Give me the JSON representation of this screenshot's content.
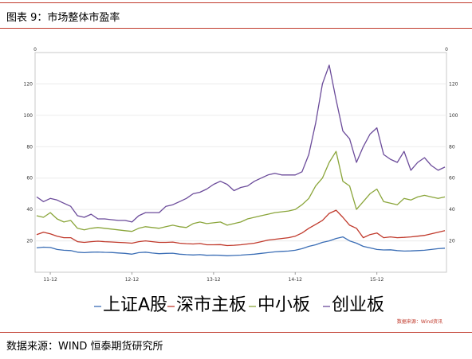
{
  "header": {
    "title": "图表 9：市场整体市盈率"
  },
  "footer": {
    "source": "数据来源：WIND 恒泰期货研究所"
  },
  "chart_data": {
    "type": "line",
    "x_ticks": [
      "11-12",
      "12-12",
      "13-12",
      "14-12",
      "15-12"
    ],
    "x_tick_positions": [
      2,
      14,
      26,
      38,
      50
    ],
    "ylim": [
      0,
      140
    ],
    "y_ticks": [
      20,
      40,
      60,
      80,
      100,
      120
    ],
    "y_top_label": "0",
    "watermark": "数据来源：Wind资讯",
    "colors": {
      "上证A股": "#3a6db5",
      "深市主板": "#c0392b",
      "中小板": "#8aa53a",
      "创业板": "#6b4b9a"
    },
    "series": [
      {
        "name": "上证A股",
        "values": [
          15.5,
          16,
          15.8,
          14.5,
          14,
          13.8,
          12.8,
          12.5,
          12.8,
          12.9,
          12.7,
          12.6,
          12.3,
          12,
          11.5,
          12.5,
          12.8,
          12.2,
          11.8,
          12,
          12.1,
          11.5,
          11.2,
          11,
          11.2,
          10.8,
          10.9,
          10.8,
          10.5,
          10.7,
          10.9,
          11.2,
          11.5,
          12,
          12.5,
          13,
          13.3,
          13.5,
          14,
          15,
          16.5,
          17.5,
          19,
          20,
          21.5,
          22.5,
          20,
          18.5,
          16.5,
          15.5,
          14.5,
          14.2,
          14.3,
          13.8,
          13.5,
          13.6,
          13.8,
          14,
          14.5,
          15,
          15.3
        ]
      },
      {
        "name": "深市主板",
        "values": [
          24,
          25.5,
          24.5,
          23,
          22,
          22,
          19.5,
          19,
          19.5,
          19.8,
          19.5,
          19.3,
          19,
          18.8,
          18.5,
          19.5,
          20,
          19.5,
          19,
          19,
          19.2,
          18.5,
          18.2,
          18,
          18.3,
          17.5,
          17.5,
          17.6,
          17,
          17.2,
          17.5,
          18,
          18.5,
          19.5,
          20.5,
          21,
          21.5,
          22,
          23,
          25,
          28,
          30.5,
          33,
          37.5,
          39.5,
          35,
          30,
          28,
          22,
          24,
          25,
          22,
          22.5,
          22,
          22.2,
          22.5,
          23,
          23.5,
          24.5,
          25.5,
          26.5
        ]
      },
      {
        "name": "中小板",
        "values": [
          36,
          35,
          38,
          34,
          32,
          33,
          28,
          27,
          28,
          28.5,
          28,
          27.5,
          27,
          26.5,
          26,
          28,
          29,
          28.5,
          28,
          29,
          30,
          29,
          28.5,
          31,
          32,
          31,
          31.5,
          32,
          30,
          31,
          32,
          34,
          35,
          36,
          37,
          38,
          38.5,
          39,
          40,
          43,
          47,
          55,
          60,
          70,
          77,
          58,
          55,
          40,
          45,
          50,
          53,
          45,
          44,
          43,
          47,
          46,
          48,
          49,
          48,
          47,
          48
        ]
      },
      {
        "name": "创业板",
        "values": [
          48,
          45,
          47,
          46,
          44,
          42,
          36,
          35,
          37,
          34,
          34,
          33.5,
          33,
          33,
          32,
          36,
          38,
          38,
          38,
          42,
          43,
          45,
          47,
          50,
          51,
          53,
          56,
          58,
          56,
          52,
          54,
          55,
          58,
          60,
          62,
          63,
          62,
          62,
          62,
          64,
          75,
          95,
          120,
          132,
          110,
          90,
          85,
          70,
          80,
          88,
          92,
          75,
          72,
          70,
          77,
          65,
          70,
          73,
          68,
          65,
          67
        ]
      }
    ]
  }
}
